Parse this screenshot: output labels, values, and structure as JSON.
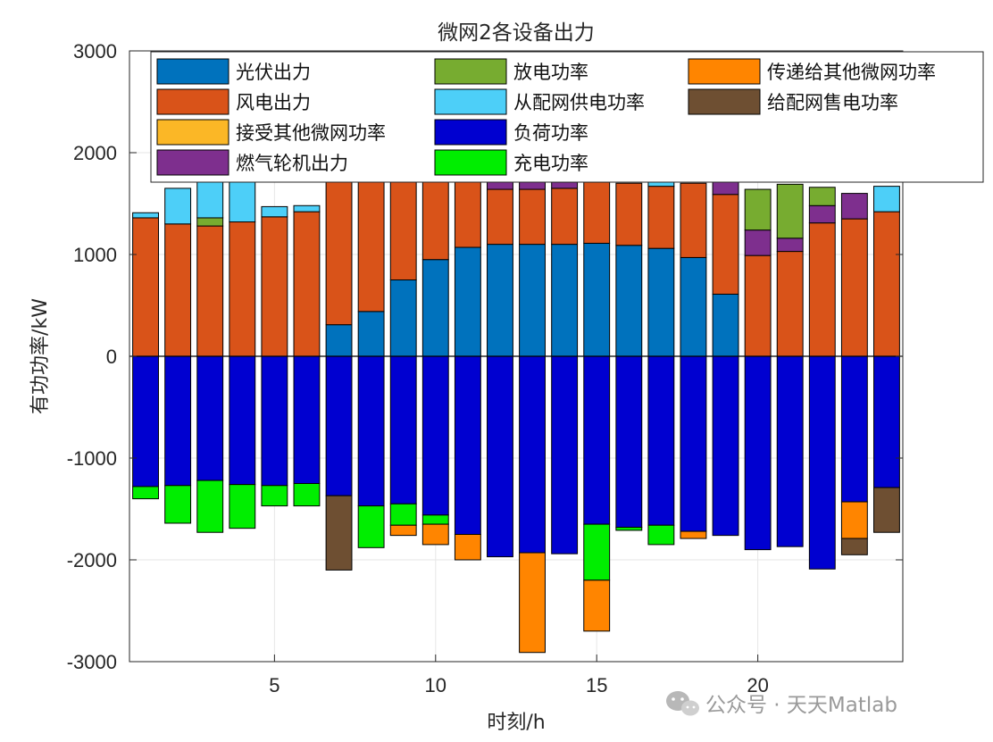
{
  "chart_data": {
    "type": "bar",
    "stacked": true,
    "title": "微网2各设备出力",
    "xlabel": "时刻/h",
    "ylabel": "有功功率/kW",
    "xlim": [
      0.5,
      24.5
    ],
    "ylim": [
      -3000,
      3000
    ],
    "xticks": [
      5,
      10,
      15,
      20
    ],
    "yticks": [
      -3000,
      -2000,
      -1000,
      0,
      1000,
      2000,
      3000
    ],
    "grid": true,
    "legend_position": "top",
    "x": [
      1,
      2,
      3,
      4,
      5,
      6,
      7,
      8,
      9,
      10,
      11,
      12,
      13,
      14,
      15,
      16,
      17,
      18,
      19,
      20,
      21,
      22,
      23,
      24
    ],
    "series": [
      {
        "name": "光伏出力",
        "color": "#0072BD",
        "values": [
          0,
          0,
          0,
          0,
          0,
          0,
          310,
          440,
          750,
          950,
          1070,
          1100,
          1100,
          1100,
          1110,
          1090,
          1060,
          970,
          610,
          0,
          0,
          0,
          0,
          0
        ]
      },
      {
        "name": "风电出力",
        "color": "#D95319",
        "values": [
          1360,
          1300,
          1280,
          1320,
          1370,
          1420,
          1440,
          1420,
          1300,
          1100,
          900,
          540,
          540,
          550,
          600,
          610,
          610,
          730,
          980,
          990,
          1030,
          1310,
          1350,
          1420
        ]
      },
      {
        "name": "接受其他微网功率",
        "color": "#FBB726",
        "values": [
          0,
          0,
          0,
          0,
          0,
          0,
          0,
          0,
          0,
          0,
          0,
          0,
          0,
          0,
          0,
          0,
          0,
          0,
          0,
          0,
          0,
          0,
          0,
          0
        ]
      },
      {
        "name": "燃气轮机出力",
        "color": "#7E2F8E",
        "values": [
          0,
          0,
          0,
          0,
          0,
          0,
          0,
          0,
          0,
          0,
          0,
          80,
          120,
          60,
          0,
          0,
          0,
          0,
          190,
          250,
          130,
          170,
          250,
          0
        ]
      },
      {
        "name": "放电功率",
        "color": "#77AC30",
        "values": [
          0,
          0,
          80,
          0,
          0,
          0,
          0,
          0,
          0,
          0,
          0,
          0,
          0,
          0,
          0,
          0,
          0,
          0,
          0,
          400,
          530,
          180,
          0,
          0
        ]
      },
      {
        "name": "从配网供电功率",
        "color": "#4DCFF8",
        "values": [
          50,
          350,
          380,
          400,
          100,
          60,
          0,
          0,
          0,
          0,
          0,
          0,
          0,
          0,
          0,
          0,
          50,
          0,
          0,
          0,
          0,
          0,
          0,
          250
        ]
      },
      {
        "name": "负荷功率",
        "color": "#0000D0",
        "values": [
          -1280,
          -1270,
          -1220,
          -1260,
          -1270,
          -1250,
          -1370,
          -1470,
          -1450,
          -1560,
          -1750,
          -1970,
          -1930,
          -1940,
          -1650,
          -1680,
          -1660,
          -1720,
          -1760,
          -1900,
          -1870,
          -2090,
          -1430,
          -1290
        ]
      },
      {
        "name": "充电功率",
        "color": "#00EE00",
        "values": [
          -120,
          -370,
          -510,
          -430,
          -200,
          -220,
          0,
          -410,
          -210,
          -90,
          0,
          0,
          0,
          0,
          -550,
          -30,
          -190,
          0,
          0,
          0,
          0,
          0,
          0,
          0
        ]
      },
      {
        "name": "传递给其他微网功率",
        "color": "#FF8500",
        "values": [
          0,
          0,
          0,
          0,
          0,
          0,
          0,
          0,
          -100,
          -200,
          -250,
          0,
          -980,
          0,
          -500,
          0,
          0,
          -70,
          0,
          0,
          0,
          0,
          -360,
          0
        ]
      },
      {
        "name": "给配网售电功率",
        "color": "#6E4F32",
        "values": [
          0,
          0,
          0,
          0,
          0,
          0,
          -730,
          0,
          0,
          0,
          0,
          0,
          0,
          0,
          0,
          0,
          0,
          0,
          0,
          0,
          0,
          0,
          -160,
          -440
        ]
      }
    ]
  },
  "watermark": {
    "text": "公众号 · 天天Matlab",
    "icon": "wechat-icon"
  }
}
